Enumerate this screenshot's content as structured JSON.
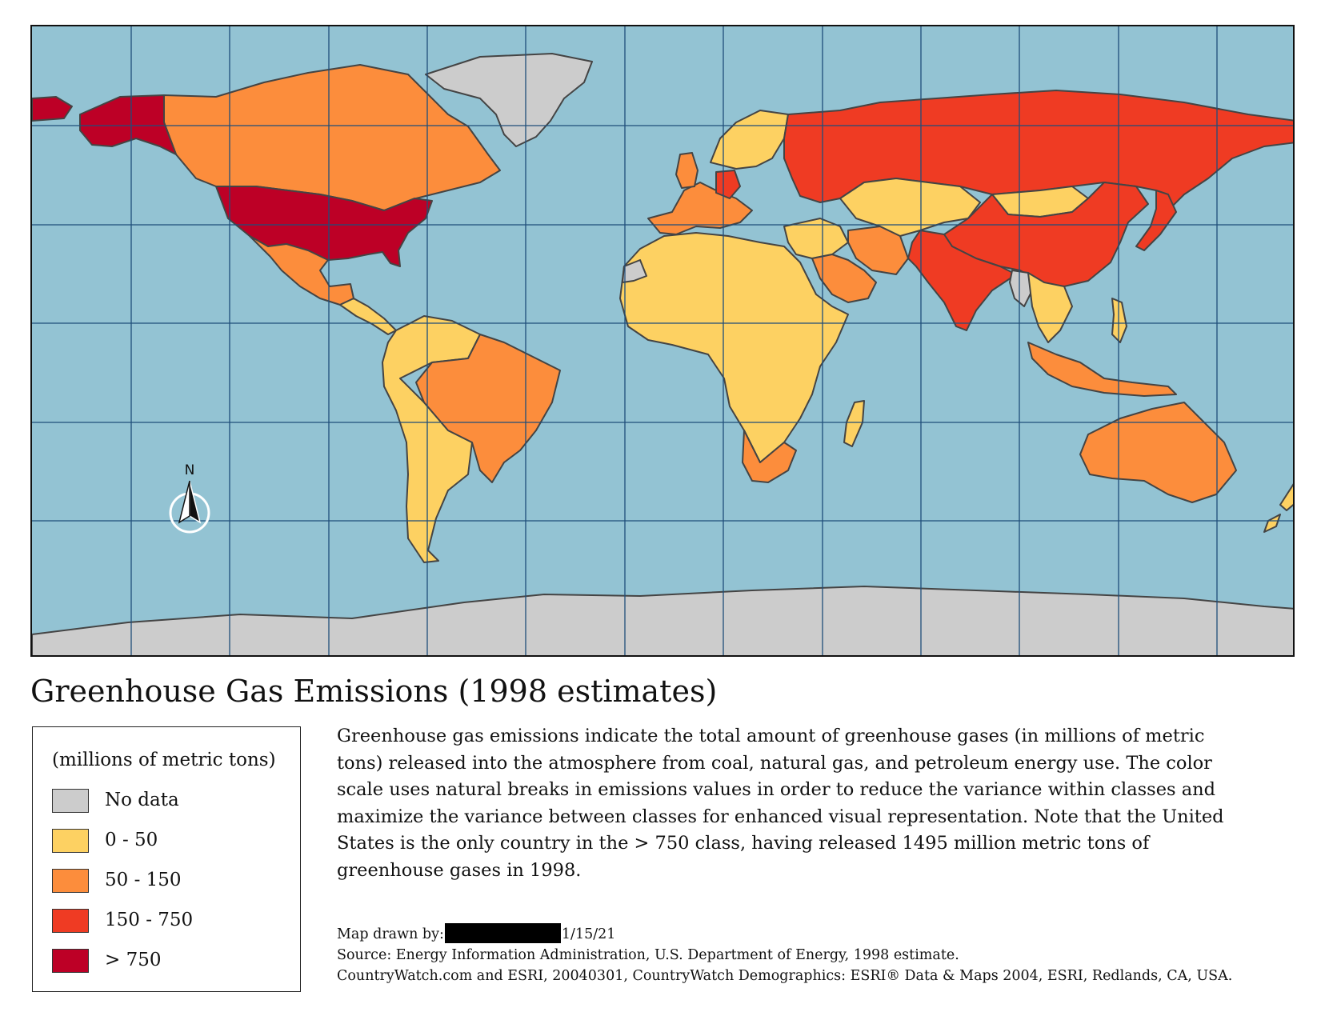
{
  "title": "Greenhouse Gas Emissions (1998 estimates)",
  "legend": {
    "title": "(millions of metric tons)",
    "items": [
      {
        "label": "No data",
        "color": "#cccccc"
      },
      {
        "label": "0 - 50",
        "color": "#fdd162"
      },
      {
        "label": "50 - 150",
        "color": "#fc8d3c"
      },
      {
        "label": "150 - 750",
        "color": "#ef3b23"
      },
      {
        "label": "> 750",
        "color": "#bd0026"
      }
    ]
  },
  "description": "Greenhouse gas emissions indicate the total amount of greenhouse gases (in millions of metric\ntons) released into the atmosphere from coal,  natural gas, and petroleum energy use.  The color\nscale uses natural breaks in emissions values in order to reduce the variance within classes and\nmaximize the variance between classes for enhanced visual representation.  Note that the United\nStates is the only country in the > 750 class,  having released 1495 million metric tons of\ngreenhouse gases in 1998.",
  "credits": {
    "drawn_by_prefix": "Map drawn by:",
    "date": "1/15/21",
    "source": "Source: Energy Information Administration, U.S. Department of Energy, 1998 estimate.",
    "data": "CountryWatch.com and ESRI, 20040301, CountryWatch Demographics: ESRI® Data & Maps 2004, ESRI, Redlands, CA, USA."
  },
  "north_arrow": {
    "label": "N",
    "icon": "north-arrow-icon"
  },
  "colors": {
    "ocean": "#93c3d3",
    "graticule": "#1f4e7a",
    "border": "#444444"
  },
  "regions": [
    {
      "name": "Alaska",
      "class": "> 750"
    },
    {
      "name": "Canada",
      "class": "50 - 150"
    },
    {
      "name": "Greenland",
      "class": "No data"
    },
    {
      "name": "United States",
      "class": "> 750"
    },
    {
      "name": "Mexico",
      "class": "50 - 150"
    },
    {
      "name": "Central America",
      "class": "0 - 50"
    },
    {
      "name": "Brazil",
      "class": "50 - 150"
    },
    {
      "name": "South America",
      "class": "0 - 50"
    },
    {
      "name": "Western Europe",
      "class": "50 - 150"
    },
    {
      "name": "Germany",
      "class": "150 - 750"
    },
    {
      "name": "Scandinavia",
      "class": "0 - 50"
    },
    {
      "name": "Russia",
      "class": "150 - 750"
    },
    {
      "name": "Africa",
      "class": "0 - 50"
    },
    {
      "name": "Western Sahara",
      "class": "No data"
    },
    {
      "name": "South Africa",
      "class": "50 - 150"
    },
    {
      "name": "Middle East",
      "class": "0 - 50"
    },
    {
      "name": "Iran",
      "class": "50 - 150"
    },
    {
      "name": "Saudi Arabia",
      "class": "50 - 150"
    },
    {
      "name": "Kazakhstan",
      "class": "0 - 50"
    },
    {
      "name": "Mongolia",
      "class": "0 - 50"
    },
    {
      "name": "China",
      "class": "150 - 750"
    },
    {
      "name": "India",
      "class": "150 - 750"
    },
    {
      "name": "Myanmar",
      "class": "No data"
    },
    {
      "name": "Japan",
      "class": "150 - 750"
    },
    {
      "name": "Southeast Asia",
      "class": "0 - 50"
    },
    {
      "name": "Indonesia",
      "class": "50 - 150"
    },
    {
      "name": "Australia",
      "class": "50 - 150"
    },
    {
      "name": "New Zealand",
      "class": "0 - 50"
    },
    {
      "name": "Antarctica",
      "class": "No data"
    }
  ]
}
